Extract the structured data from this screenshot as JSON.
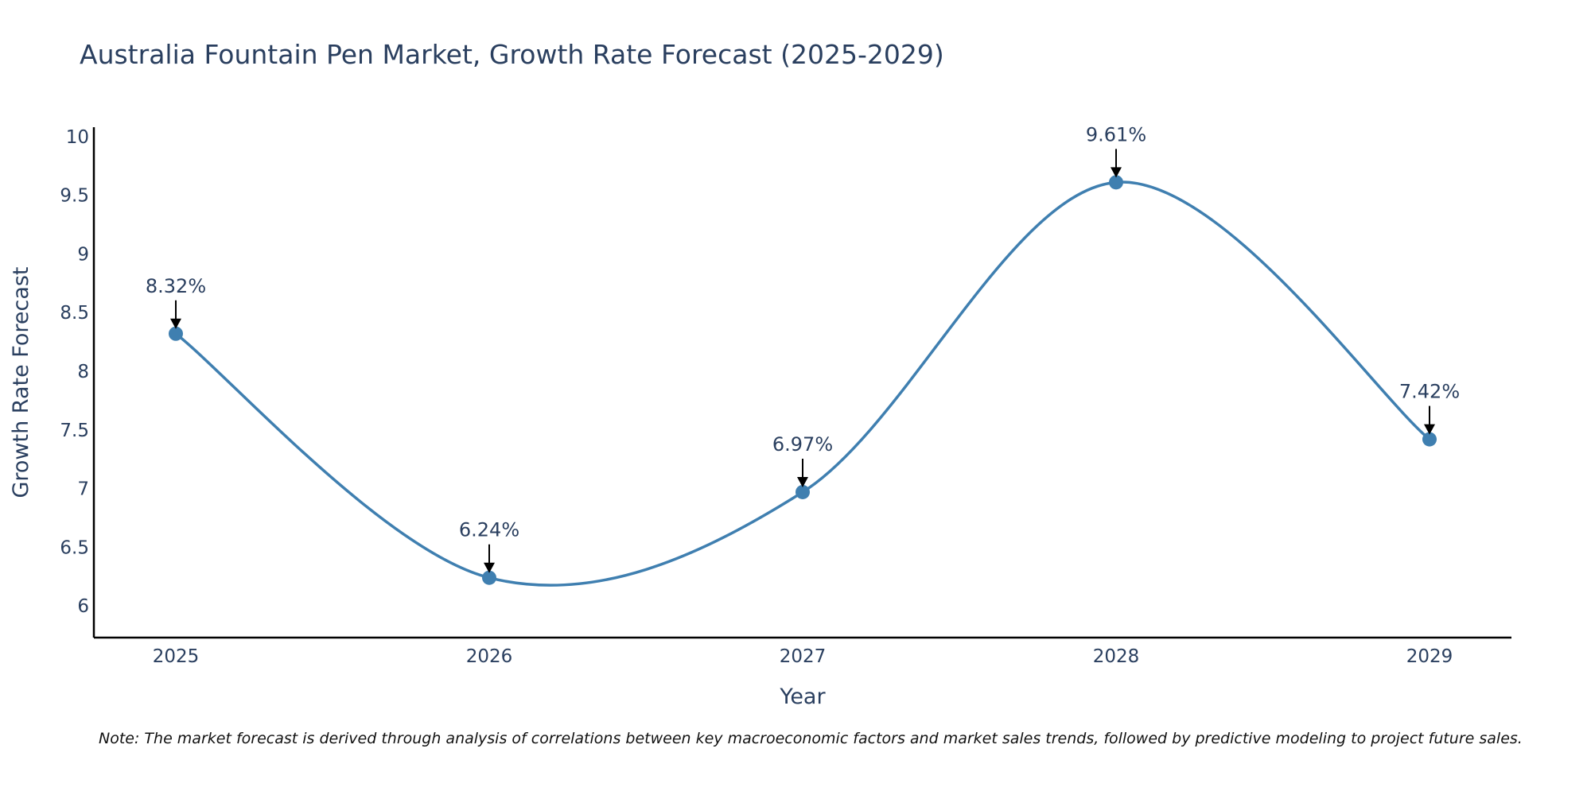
{
  "chart_data": {
    "type": "line",
    "title": "Australia Fountain Pen Market, Growth Rate Forecast (2025-2029)",
    "xlabel": "Year",
    "ylabel": "Growth Rate Forecast",
    "categories": [
      "2025",
      "2026",
      "2027",
      "2028",
      "2029"
    ],
    "series": [
      {
        "name": "Growth Rate Forecast",
        "values": [
          8.32,
          6.24,
          6.97,
          9.61,
          7.42
        ]
      }
    ],
    "data_labels": [
      "8.32%",
      "6.24%",
      "6.97%",
      "9.61%",
      "7.42%"
    ],
    "y_ticks": [
      6,
      6.5,
      7,
      7.5,
      8,
      8.5,
      9,
      9.5,
      10
    ],
    "y_tick_labels": [
      "6",
      "6.5",
      "7",
      "7.5",
      "8",
      "8.5",
      "9",
      "9.5",
      "10"
    ],
    "ylim": [
      5.73,
      10.08
    ],
    "grid": false,
    "line_shape": "spline",
    "colors": {
      "line": "#3f7fb0",
      "marker": "#3f7fb0",
      "axis": "#000000",
      "text": "#2a3f5f",
      "arrow": "#000000"
    }
  },
  "note": "Note: The market forecast is derived through analysis of correlations between key macroeconomic factors and market sales trends, followed by predictive modeling to project future sales."
}
